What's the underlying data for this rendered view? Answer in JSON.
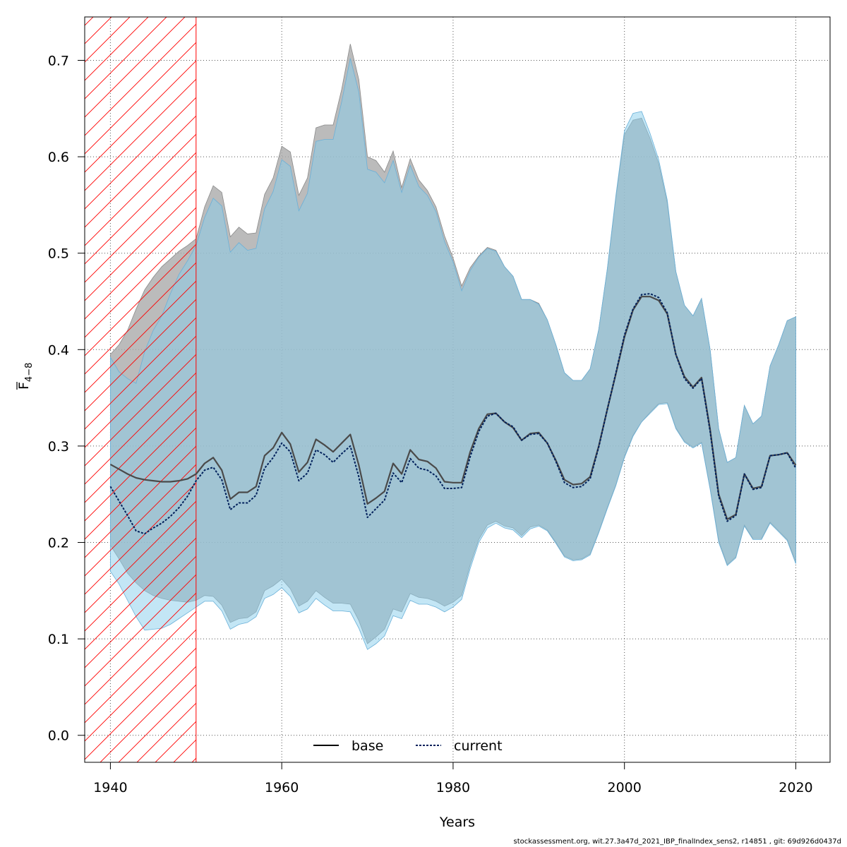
{
  "chart_data": {
    "type": "line",
    "xlabel": "Years",
    "ylabel_main": "F",
    "ylabel_sub": "4−8",
    "xlim": [
      1937,
      2024
    ],
    "ylim": [
      -0.028,
      0.745
    ],
    "x_ticks": [
      "1940",
      "1960",
      "1980",
      "2000",
      "2020"
    ],
    "x_tick_values": [
      1940,
      1960,
      1980,
      2000,
      2020
    ],
    "y_ticks": [
      "0.0",
      "0.1",
      "0.2",
      "0.3",
      "0.4",
      "0.5",
      "0.6",
      "0.7"
    ],
    "y_tick_values": [
      0.0,
      0.1,
      0.2,
      0.3,
      0.4,
      0.5,
      0.6,
      0.7
    ],
    "grid": true,
    "legend_position": "bottom-center",
    "hatched_region": {
      "x_from": 1937,
      "x_to": 1950,
      "color": "#ff0000"
    },
    "x": [
      1940,
      1941,
      1942,
      1943,
      1944,
      1945,
      1946,
      1947,
      1948,
      1949,
      1950,
      1951,
      1952,
      1953,
      1954,
      1955,
      1956,
      1957,
      1958,
      1959,
      1960,
      1961,
      1962,
      1963,
      1964,
      1965,
      1966,
      1967,
      1968,
      1969,
      1970,
      1971,
      1972,
      1973,
      1974,
      1975,
      1976,
      1977,
      1978,
      1979,
      1980,
      1981,
      1982,
      1983,
      1984,
      1985,
      1986,
      1987,
      1988,
      1989,
      1990,
      1991,
      1992,
      1993,
      1994,
      1995,
      1996,
      1997,
      1998,
      1999,
      2000,
      2001,
      2002,
      2003,
      2004,
      2005,
      2006,
      2007,
      2008,
      2009,
      2010,
      2011,
      2012,
      2013,
      2014,
      2015,
      2016,
      2017,
      2018,
      2019,
      2020
    ],
    "series": [
      {
        "name": "base",
        "color": "#4a4a4a",
        "band_color": "#aaaaaa",
        "values": [
          0.281,
          0.276,
          0.271,
          0.267,
          0.265,
          0.264,
          0.263,
          0.263,
          0.264,
          0.266,
          0.271,
          0.282,
          0.288,
          0.275,
          0.245,
          0.252,
          0.252,
          0.258,
          0.29,
          0.298,
          0.314,
          0.302,
          0.273,
          0.283,
          0.307,
          0.301,
          0.294,
          0.303,
          0.312,
          0.28,
          0.24,
          0.246,
          0.253,
          0.282,
          0.271,
          0.296,
          0.286,
          0.284,
          0.277,
          0.263,
          0.262,
          0.262,
          0.294,
          0.318,
          0.333,
          0.334,
          0.325,
          0.319,
          0.306,
          0.313,
          0.314,
          0.303,
          0.285,
          0.265,
          0.26,
          0.261,
          0.268,
          0.3,
          0.338,
          0.375,
          0.413,
          0.441,
          0.455,
          0.455,
          0.451,
          0.437,
          0.395,
          0.372,
          0.361,
          0.371,
          0.317,
          0.25,
          0.224,
          0.229,
          0.271,
          0.256,
          0.258,
          0.29,
          0.291,
          0.293,
          0.28
        ],
        "lower": [
          0.197,
          0.183,
          0.168,
          0.158,
          0.15,
          0.145,
          0.142,
          0.14,
          0.139,
          0.138,
          0.14,
          0.145,
          0.144,
          0.135,
          0.117,
          0.121,
          0.122,
          0.128,
          0.15,
          0.155,
          0.162,
          0.152,
          0.134,
          0.139,
          0.15,
          0.143,
          0.137,
          0.137,
          0.136,
          0.119,
          0.095,
          0.102,
          0.11,
          0.131,
          0.128,
          0.147,
          0.143,
          0.142,
          0.139,
          0.134,
          0.138,
          0.145,
          0.177,
          0.203,
          0.218,
          0.222,
          0.217,
          0.215,
          0.207,
          0.216,
          0.218,
          0.213,
          0.2,
          0.186,
          0.182,
          0.183,
          0.188,
          0.211,
          0.236,
          0.26,
          0.289,
          0.311,
          0.325,
          0.335,
          0.344,
          0.345,
          0.319,
          0.305,
          0.299,
          0.304,
          0.256,
          0.202,
          0.177,
          0.185,
          0.218,
          0.204,
          0.204,
          0.221,
          0.212,
          0.203,
          0.18
        ],
        "upper": [
          0.395,
          0.405,
          0.42,
          0.442,
          0.462,
          0.475,
          0.486,
          0.494,
          0.502,
          0.508,
          0.515,
          0.548,
          0.57,
          0.563,
          0.517,
          0.527,
          0.52,
          0.521,
          0.561,
          0.578,
          0.611,
          0.605,
          0.56,
          0.578,
          0.63,
          0.633,
          0.633,
          0.67,
          0.717,
          0.68,
          0.6,
          0.596,
          0.584,
          0.606,
          0.568,
          0.598,
          0.576,
          0.565,
          0.548,
          0.518,
          0.495,
          0.466,
          0.485,
          0.497,
          0.506,
          0.503,
          0.486,
          0.476,
          0.452,
          0.452,
          0.448,
          0.431,
          0.405,
          0.376,
          0.368,
          0.368,
          0.38,
          0.421,
          0.483,
          0.558,
          0.623,
          0.638,
          0.64,
          0.619,
          0.593,
          0.552,
          0.481,
          0.446,
          0.435,
          0.453,
          0.4,
          0.318,
          0.283,
          0.288,
          0.342,
          0.323,
          0.331,
          0.383,
          0.405,
          0.43,
          0.434
        ]
      },
      {
        "name": "current",
        "color": "#00205b",
        "band_color": "#87ceeb",
        "values": [
          0.258,
          0.243,
          0.228,
          0.212,
          0.209,
          0.215,
          0.22,
          0.227,
          0.236,
          0.248,
          0.264,
          0.275,
          0.278,
          0.265,
          0.234,
          0.241,
          0.241,
          0.249,
          0.277,
          0.288,
          0.303,
          0.294,
          0.264,
          0.272,
          0.296,
          0.291,
          0.283,
          0.292,
          0.3,
          0.268,
          0.226,
          0.235,
          0.244,
          0.272,
          0.262,
          0.287,
          0.277,
          0.275,
          0.269,
          0.256,
          0.256,
          0.257,
          0.289,
          0.315,
          0.331,
          0.334,
          0.325,
          0.32,
          0.306,
          0.312,
          0.313,
          0.303,
          0.284,
          0.262,
          0.257,
          0.258,
          0.266,
          0.299,
          0.338,
          0.376,
          0.415,
          0.442,
          0.457,
          0.458,
          0.454,
          0.438,
          0.395,
          0.37,
          0.36,
          0.37,
          0.315,
          0.248,
          0.222,
          0.228,
          0.271,
          0.255,
          0.257,
          0.29,
          0.291,
          0.293,
          0.277
        ],
        "lower": [
          0.17,
          0.157,
          0.14,
          0.123,
          0.109,
          0.11,
          0.111,
          0.115,
          0.121,
          0.127,
          0.133,
          0.139,
          0.139,
          0.129,
          0.11,
          0.115,
          0.117,
          0.123,
          0.142,
          0.146,
          0.153,
          0.144,
          0.127,
          0.131,
          0.142,
          0.135,
          0.129,
          0.129,
          0.128,
          0.111,
          0.089,
          0.095,
          0.103,
          0.124,
          0.121,
          0.14,
          0.136,
          0.136,
          0.133,
          0.128,
          0.133,
          0.141,
          0.173,
          0.2,
          0.215,
          0.22,
          0.215,
          0.213,
          0.205,
          0.214,
          0.217,
          0.212,
          0.199,
          0.185,
          0.181,
          0.182,
          0.187,
          0.21,
          0.235,
          0.259,
          0.288,
          0.31,
          0.325,
          0.334,
          0.343,
          0.344,
          0.318,
          0.304,
          0.298,
          0.303,
          0.255,
          0.2,
          0.176,
          0.184,
          0.217,
          0.203,
          0.203,
          0.22,
          0.211,
          0.202,
          0.178
        ],
        "upper": [
          0.392,
          0.377,
          0.37,
          0.365,
          0.398,
          0.42,
          0.435,
          0.458,
          0.478,
          0.492,
          0.508,
          0.537,
          0.557,
          0.549,
          0.501,
          0.511,
          0.503,
          0.505,
          0.546,
          0.564,
          0.597,
          0.59,
          0.544,
          0.562,
          0.616,
          0.618,
          0.618,
          0.657,
          0.702,
          0.667,
          0.587,
          0.584,
          0.573,
          0.596,
          0.563,
          0.591,
          0.569,
          0.56,
          0.543,
          0.512,
          0.491,
          0.461,
          0.482,
          0.496,
          0.505,
          0.502,
          0.486,
          0.476,
          0.452,
          0.452,
          0.447,
          0.431,
          0.405,
          0.376,
          0.368,
          0.368,
          0.38,
          0.421,
          0.484,
          0.56,
          0.627,
          0.645,
          0.647,
          0.624,
          0.597,
          0.555,
          0.481,
          0.446,
          0.435,
          0.453,
          0.4,
          0.318,
          0.283,
          0.288,
          0.342,
          0.323,
          0.331,
          0.383,
          0.405,
          0.43,
          0.434
        ]
      }
    ]
  },
  "footer": "stockassessment.org, wit.27.3a47d_2021_IBP_finalIndex_sens2, r14851 , git: 69d926d0437d"
}
